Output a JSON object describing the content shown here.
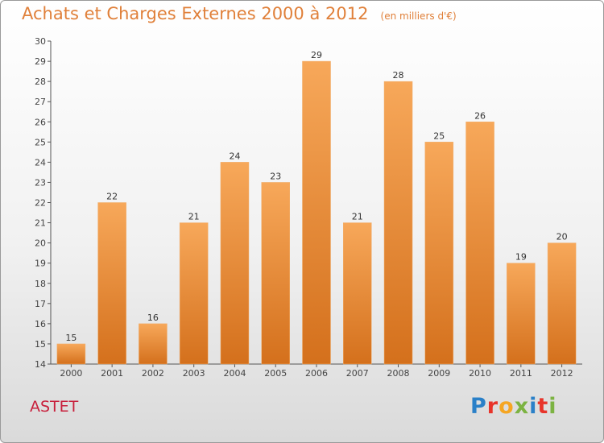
{
  "title": "Achats et Charges Externes 2000 à 2012",
  "subtitle": "(en milliers d'€)",
  "commune": "ASTET",
  "logo": {
    "text": "Proxiti",
    "colors": [
      "#2a80c8",
      "#e8342a",
      "#f5a623",
      "#7cb342",
      "#2a80c8",
      "#e8342a",
      "#7cb342"
    ]
  },
  "colors": {
    "bar_light": "#f7a85a",
    "bar_dark": "#d4701c",
    "title": "#e0803a",
    "commune": "#c8203c"
  },
  "chart_data": {
    "type": "bar",
    "title": "Achats et Charges Externes 2000 à 2012",
    "subtitle": "(en milliers d'€)",
    "categories": [
      "2000",
      "2001",
      "2002",
      "2003",
      "2004",
      "2005",
      "2006",
      "2007",
      "2008",
      "2009",
      "2010",
      "2011",
      "2012"
    ],
    "values": [
      15,
      22,
      16,
      21,
      24,
      23,
      29,
      21,
      28,
      25,
      26,
      19,
      20
    ],
    "ylim": [
      14,
      30
    ],
    "yticks": [
      14,
      15,
      16,
      17,
      18,
      19,
      20,
      21,
      22,
      23,
      24,
      25,
      26,
      27,
      28,
      29,
      30
    ],
    "grid": false,
    "data_labels": true
  }
}
